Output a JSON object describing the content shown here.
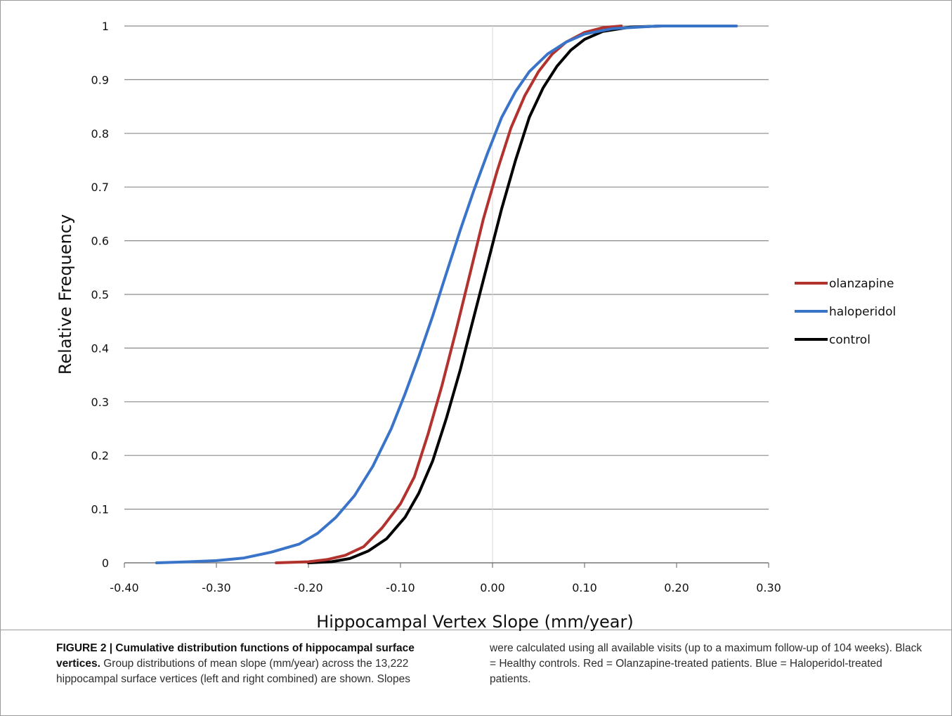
{
  "chart_data": {
    "type": "line",
    "title": "",
    "xlabel": "Hippocampal Vertex Slope (mm/year)",
    "ylabel": "Relative Frequency",
    "xlim": [
      -0.4,
      0.3
    ],
    "ylim": [
      0,
      1
    ],
    "x_ticks": [
      "-0.40",
      "-0.30",
      "-0.20",
      "-0.10",
      "0.00",
      "0.10",
      "0.20",
      "0.30"
    ],
    "y_ticks": [
      "0",
      "0.1",
      "0.2",
      "0.3",
      "0.4",
      "0.5",
      "0.6",
      "0.7",
      "0.8",
      "0.9",
      "1"
    ],
    "grid": "horizontal",
    "legend_position": "right",
    "series": [
      {
        "name": "olanzapine",
        "color": "#b2322e",
        "points": [
          [
            -0.235,
            0.0
          ],
          [
            -0.2,
            0.002
          ],
          [
            -0.18,
            0.006
          ],
          [
            -0.16,
            0.014
          ],
          [
            -0.14,
            0.03
          ],
          [
            -0.12,
            0.065
          ],
          [
            -0.1,
            0.11
          ],
          [
            -0.085,
            0.16
          ],
          [
            -0.07,
            0.24
          ],
          [
            -0.055,
            0.33
          ],
          [
            -0.04,
            0.43
          ],
          [
            -0.025,
            0.535
          ],
          [
            -0.01,
            0.64
          ],
          [
            0.005,
            0.73
          ],
          [
            0.02,
            0.81
          ],
          [
            0.035,
            0.87
          ],
          [
            0.05,
            0.915
          ],
          [
            0.065,
            0.948
          ],
          [
            0.08,
            0.97
          ],
          [
            0.1,
            0.988
          ],
          [
            0.12,
            0.997
          ],
          [
            0.14,
            1.0
          ]
        ]
      },
      {
        "name": "haloperidol",
        "color": "#3a74c9",
        "points": [
          [
            -0.365,
            0.0
          ],
          [
            -0.33,
            0.002
          ],
          [
            -0.3,
            0.004
          ],
          [
            -0.27,
            0.009
          ],
          [
            -0.24,
            0.02
          ],
          [
            -0.21,
            0.035
          ],
          [
            -0.19,
            0.055
          ],
          [
            -0.17,
            0.085
          ],
          [
            -0.15,
            0.125
          ],
          [
            -0.13,
            0.18
          ],
          [
            -0.11,
            0.25
          ],
          [
            -0.095,
            0.315
          ],
          [
            -0.08,
            0.385
          ],
          [
            -0.065,
            0.46
          ],
          [
            -0.05,
            0.54
          ],
          [
            -0.035,
            0.62
          ],
          [
            -0.02,
            0.695
          ],
          [
            -0.005,
            0.765
          ],
          [
            0.01,
            0.83
          ],
          [
            0.025,
            0.878
          ],
          [
            0.04,
            0.915
          ],
          [
            0.06,
            0.948
          ],
          [
            0.08,
            0.97
          ],
          [
            0.1,
            0.985
          ],
          [
            0.13,
            0.995
          ],
          [
            0.18,
            1.0
          ],
          [
            0.265,
            1.0
          ]
        ]
      },
      {
        "name": "control",
        "color": "#000000",
        "points": [
          [
            -0.2,
            0.0
          ],
          [
            -0.175,
            0.002
          ],
          [
            -0.155,
            0.008
          ],
          [
            -0.135,
            0.022
          ],
          [
            -0.115,
            0.045
          ],
          [
            -0.095,
            0.085
          ],
          [
            -0.08,
            0.13
          ],
          [
            -0.065,
            0.19
          ],
          [
            -0.05,
            0.27
          ],
          [
            -0.035,
            0.36
          ],
          [
            -0.02,
            0.46
          ],
          [
            -0.005,
            0.56
          ],
          [
            0.01,
            0.66
          ],
          [
            0.025,
            0.75
          ],
          [
            0.04,
            0.83
          ],
          [
            0.055,
            0.885
          ],
          [
            0.07,
            0.925
          ],
          [
            0.085,
            0.955
          ],
          [
            0.1,
            0.975
          ],
          [
            0.12,
            0.99
          ],
          [
            0.15,
            0.998
          ],
          [
            0.185,
            1.0
          ]
        ]
      }
    ]
  },
  "caption": {
    "label": "FIGURE 2 | Cumulative distribution functions of hippocampal surface vertices.",
    "left_text": " Group distributions of mean slope (mm/year) across the 13,222 hippocampal surface vertices (left and right combined) are shown. Slopes",
    "right_text": "were calculated using all available visits (up to a maximum follow-up of 104 weeks). Black = Healthy controls. Red = Olanzapine-treated patients. Blue = Haloperidol-treated patients."
  }
}
